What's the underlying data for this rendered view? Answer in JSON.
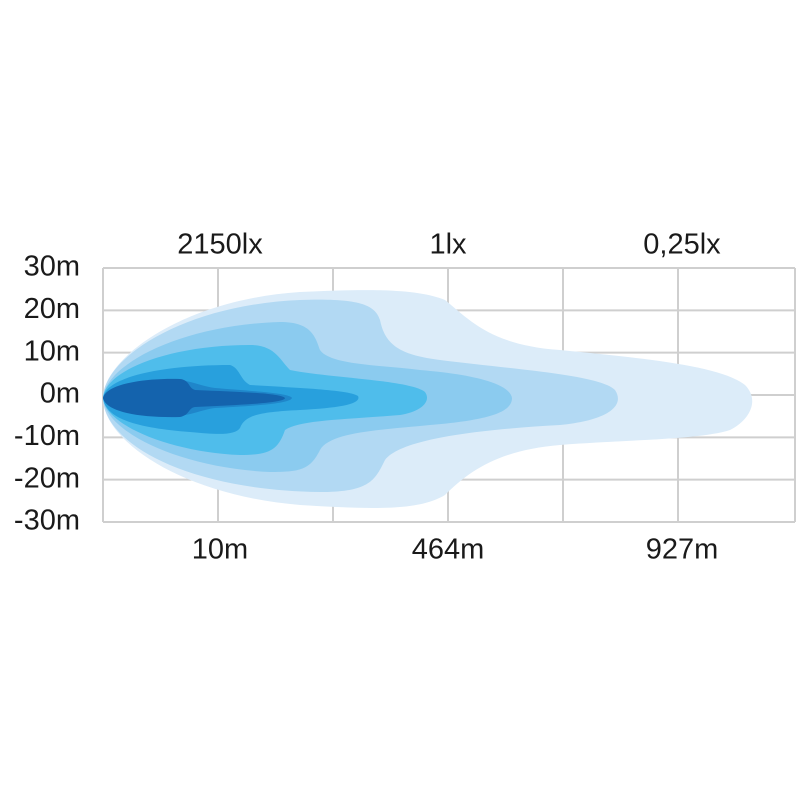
{
  "top_labels": [
    "2150lx",
    "1lx",
    "0,25lx"
  ],
  "y_labels": [
    "30m",
    "20m",
    "10m",
    "0m",
    "-10m",
    "-20m",
    "-30m"
  ],
  "bottom_labels": [
    "10m",
    "464m",
    "927m"
  ]
}
